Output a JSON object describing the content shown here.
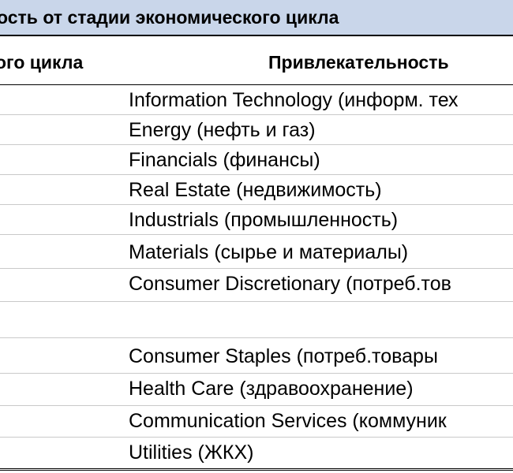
{
  "title": "ость от стадии экономического цикла",
  "columns": {
    "left_header": "ого цикла",
    "right_header": "Привлекательность"
  },
  "rows": [
    {
      "text": "Information Technology (информ. тех"
    },
    {
      "text": "Energy  (нефть и газ)"
    },
    {
      "text": "Financials (финансы)"
    },
    {
      "text": "Real Estate (недвижимость)"
    },
    {
      "text": "Industrials (промышленность)"
    },
    {
      "text": "Materials (сырье и материалы)"
    },
    {
      "text": "Consumer Discretionary (потреб.тов"
    },
    {
      "text": ""
    },
    {
      "text": "Consumer Staples (потреб.товары"
    },
    {
      "text": "Health Care (здравоохранение)"
    },
    {
      "text": "Communication Services (коммуник"
    },
    {
      "text": "Utilities (ЖКХ)"
    }
  ],
  "colors": {
    "title_background": "#c9d6ea",
    "grid_line": "#c9c9c9",
    "text": "#000000"
  }
}
